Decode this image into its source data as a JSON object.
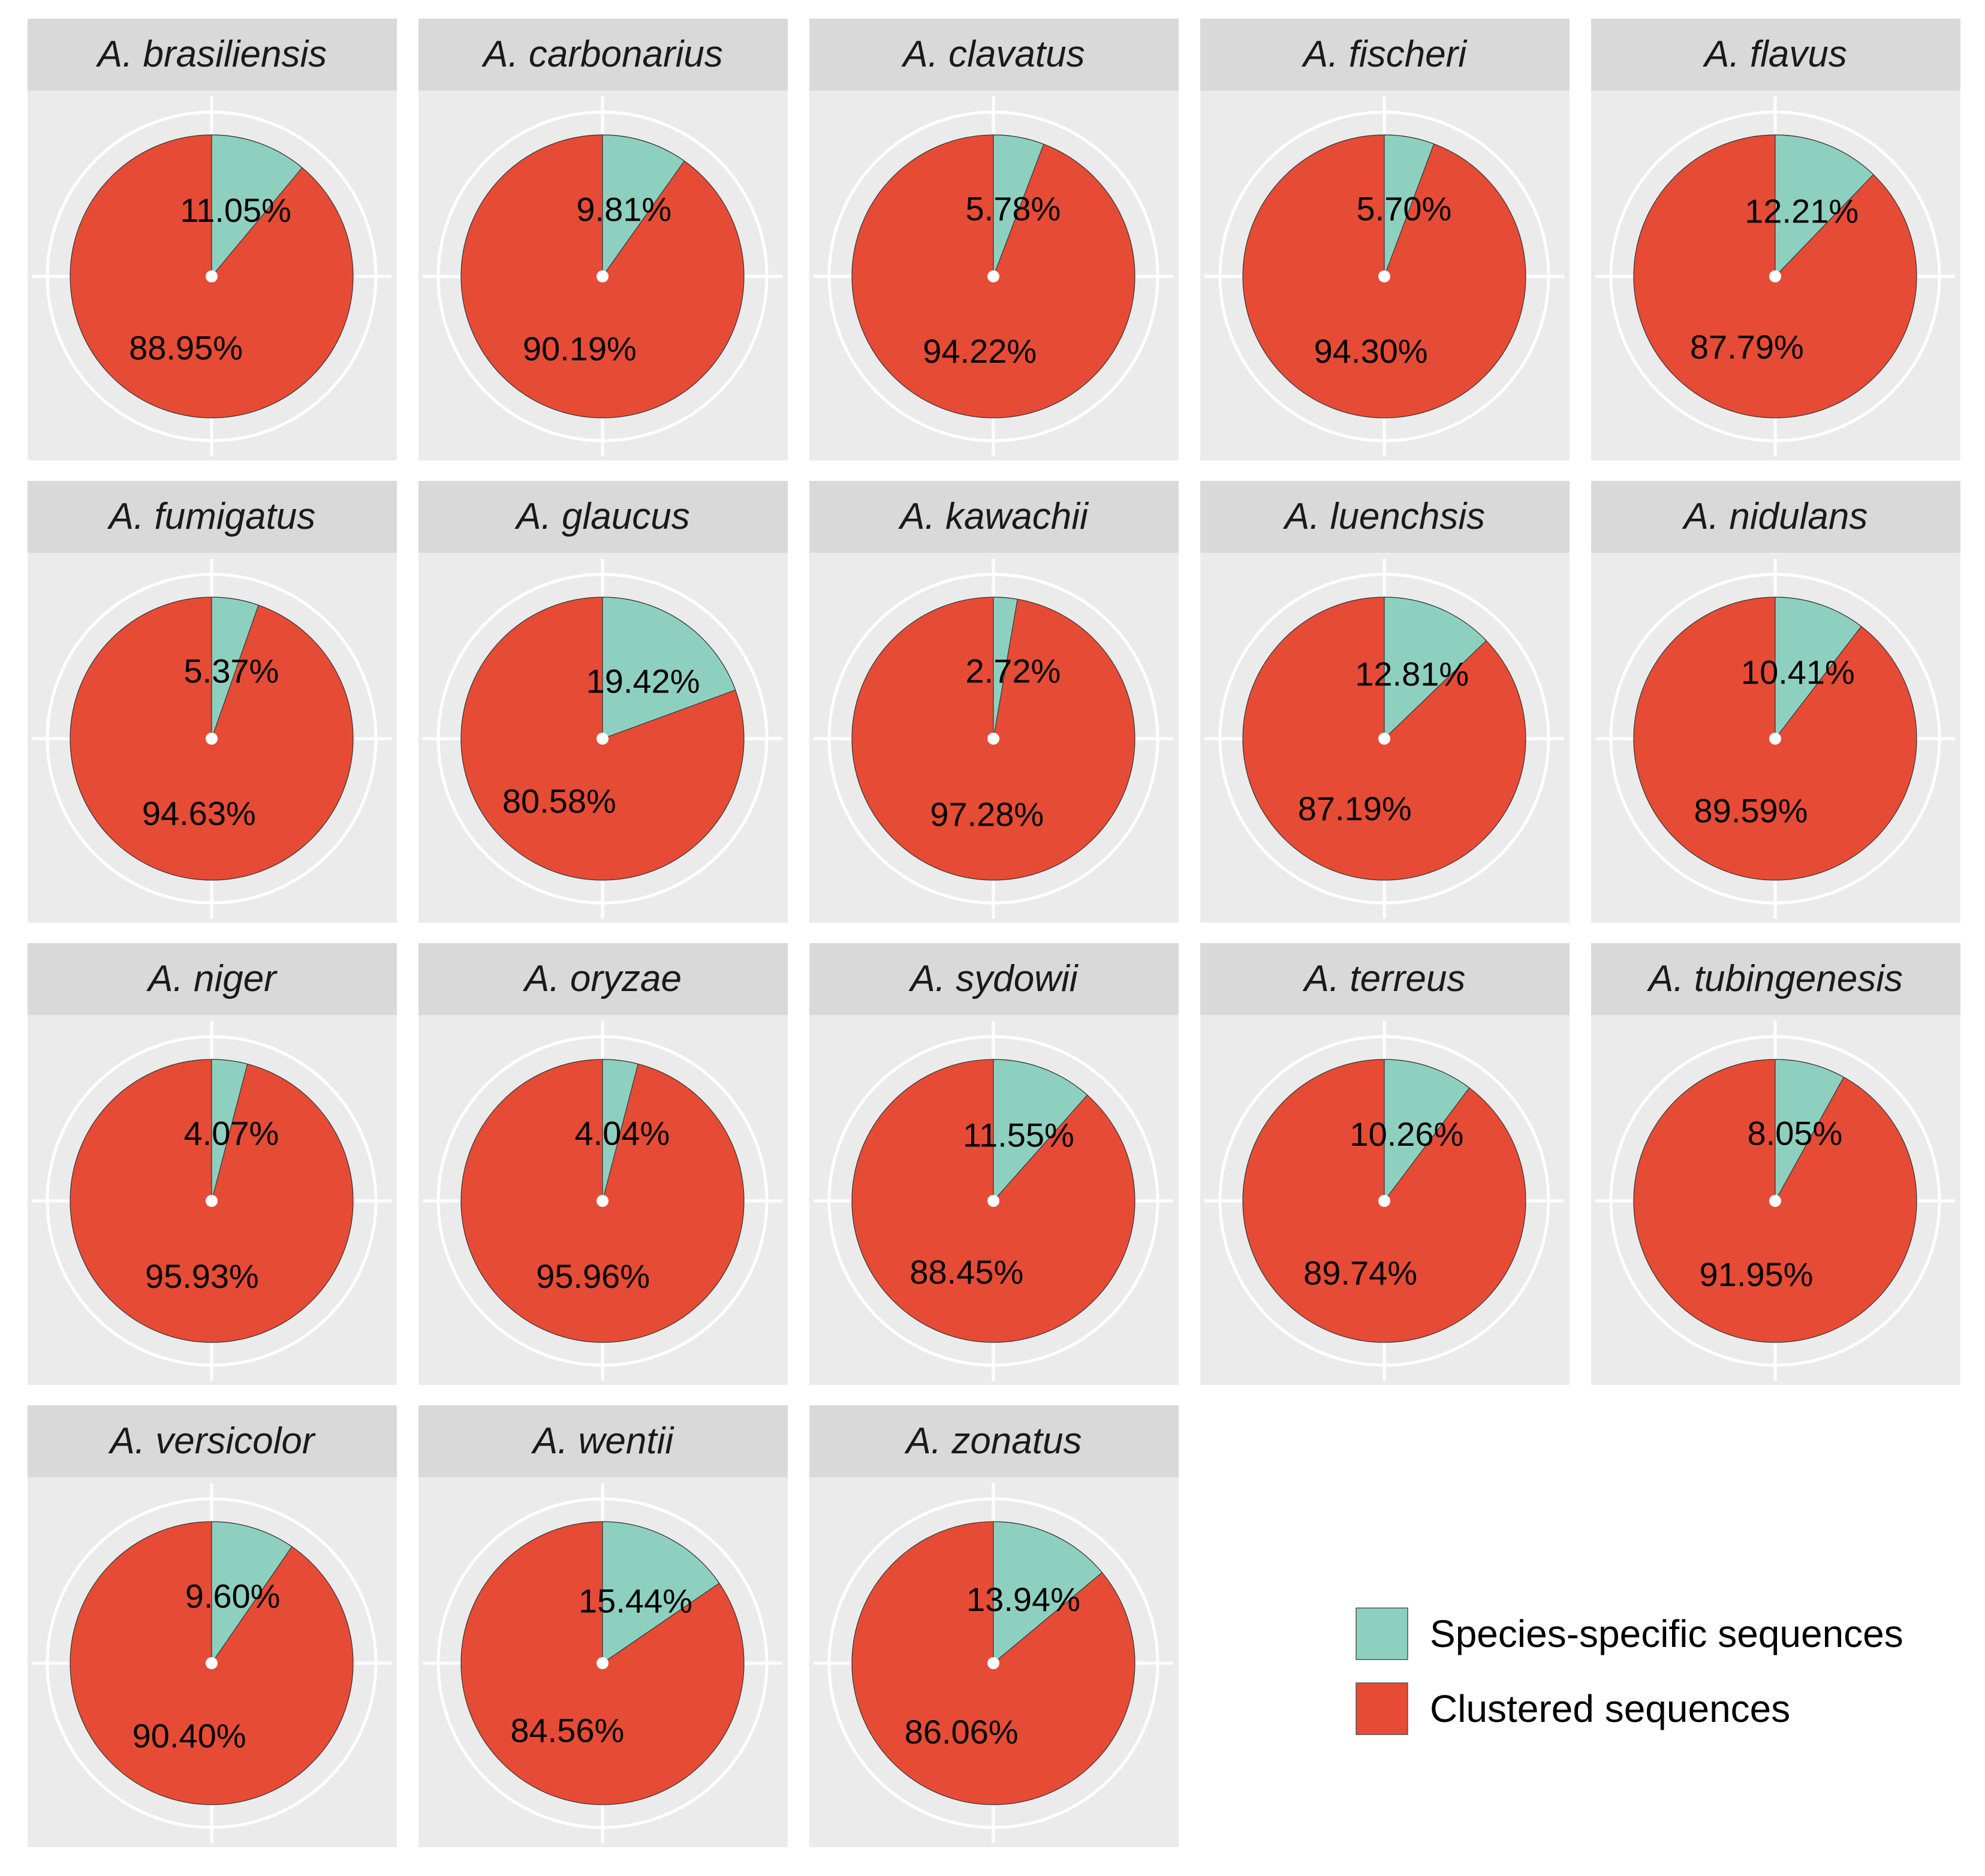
{
  "chart_data": {
    "type": "pie",
    "legend_position": "bottom-right",
    "series_names": [
      "Species-specific sequences",
      "Clustered sequences"
    ],
    "colors": {
      "species_specific": "#8ed0bf",
      "clustered": "#e64b35",
      "panel_bg": "#ebebeb",
      "strip_bg": "#d9d9d9",
      "grid": "#ffffff"
    },
    "legend": [
      {
        "label": "Species-specific sequences",
        "color": "#8ed0bf"
      },
      {
        "label": "Clustered sequences",
        "color": "#e64b35"
      }
    ],
    "panels": [
      {
        "species": "A. brasiliensis",
        "specific": 11.05,
        "clustered": 88.95,
        "specific_label": "11.05%",
        "clustered_label": "88.95%"
      },
      {
        "species": "A. carbonarius",
        "specific": 9.81,
        "clustered": 90.19,
        "specific_label": "9.81%",
        "clustered_label": "90.19%"
      },
      {
        "species": "A. clavatus",
        "specific": 5.78,
        "clustered": 94.22,
        "specific_label": "5.78%",
        "clustered_label": "94.22%"
      },
      {
        "species": "A. fischeri",
        "specific": 5.7,
        "clustered": 94.3,
        "specific_label": "5.70%",
        "clustered_label": "94.30%"
      },
      {
        "species": "A. flavus",
        "specific": 12.21,
        "clustered": 87.79,
        "specific_label": "12.21%",
        "clustered_label": "87.79%"
      },
      {
        "species": "A. fumigatus",
        "specific": 5.37,
        "clustered": 94.63,
        "specific_label": "5.37%",
        "clustered_label": "94.63%"
      },
      {
        "species": "A. glaucus",
        "specific": 19.42,
        "clustered": 80.58,
        "specific_label": "19.42%",
        "clustered_label": "80.58%"
      },
      {
        "species": "A. kawachii",
        "specific": 2.72,
        "clustered": 97.28,
        "specific_label": "2.72%",
        "clustered_label": "97.28%"
      },
      {
        "species": "A. luenchsis",
        "specific": 12.81,
        "clustered": 87.19,
        "specific_label": "12.81%",
        "clustered_label": "87.19%"
      },
      {
        "species": "A. nidulans",
        "specific": 10.41,
        "clustered": 89.59,
        "specific_label": "10.41%",
        "clustered_label": "89.59%"
      },
      {
        "species": "A. niger",
        "specific": 4.07,
        "clustered": 95.93,
        "specific_label": "4.07%",
        "clustered_label": "95.93%"
      },
      {
        "species": "A. oryzae",
        "specific": 4.04,
        "clustered": 95.96,
        "specific_label": "4.04%",
        "clustered_label": "95.96%"
      },
      {
        "species": "A. sydowii",
        "specific": 11.55,
        "clustered": 88.45,
        "specific_label": "11.55%",
        "clustered_label": "88.45%"
      },
      {
        "species": "A. terreus",
        "specific": 10.26,
        "clustered": 89.74,
        "specific_label": "10.26%",
        "clustered_label": "89.74%"
      },
      {
        "species": "A. tubingenesis",
        "specific": 8.05,
        "clustered": 91.95,
        "specific_label": "8.05%",
        "clustered_label": "91.95%"
      },
      {
        "species": "A. versicolor",
        "specific": 9.6,
        "clustered": 90.4,
        "specific_label": "9.60%",
        "clustered_label": "90.40%"
      },
      {
        "species": "A. wentii",
        "specific": 15.44,
        "clustered": 84.56,
        "specific_label": "15.44%",
        "clustered_label": "84.56%"
      },
      {
        "species": "A. zonatus",
        "specific": 13.94,
        "clustered": 86.06,
        "specific_label": "13.94%",
        "clustered_label": "86.06%"
      }
    ]
  }
}
